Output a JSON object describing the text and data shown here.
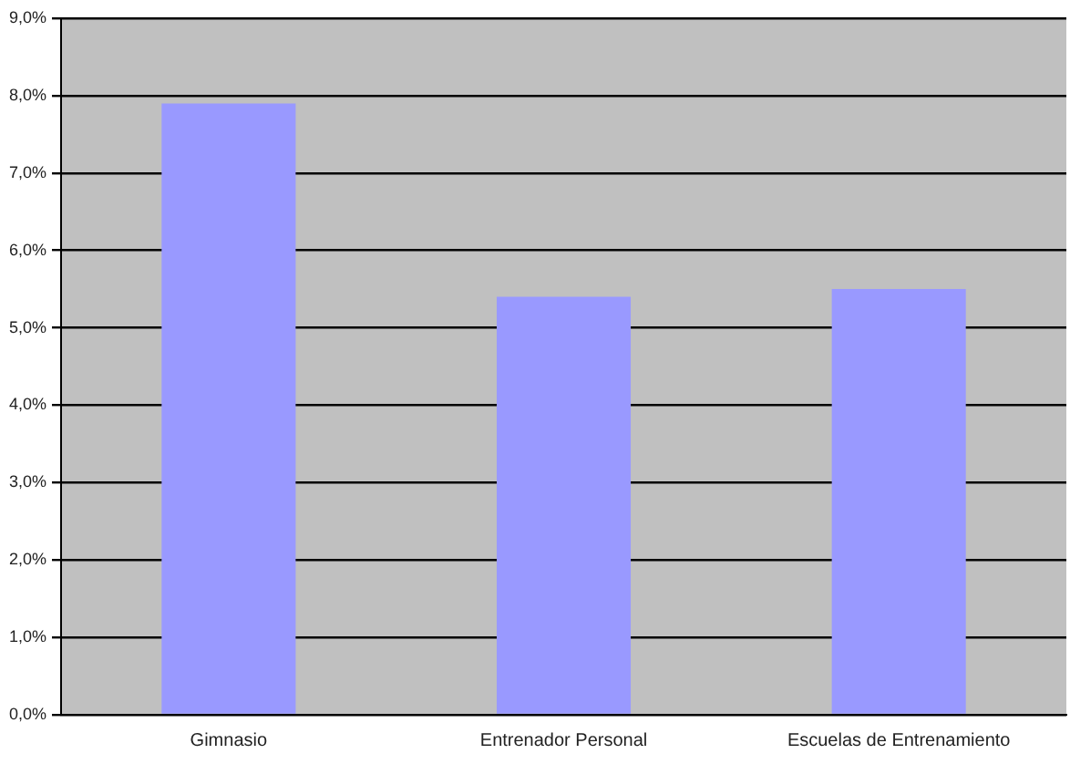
{
  "chart_data": {
    "type": "bar",
    "categories": [
      "Gimnasio",
      "Entrenador Personal",
      "Escuelas de Entrenamiento"
    ],
    "values": [
      7.9,
      5.4,
      5.5
    ],
    "color": "#9999ff",
    "ylim": [
      0,
      9
    ],
    "yticks": [
      {
        "value": 0,
        "label": "0,0%"
      },
      {
        "value": 1,
        "label": "1,0%"
      },
      {
        "value": 2,
        "label": "2,0%"
      },
      {
        "value": 3,
        "label": "3,0%"
      },
      {
        "value": 4,
        "label": "4,0%"
      },
      {
        "value": 5,
        "label": "5,0%"
      },
      {
        "value": 6,
        "label": "6,0%"
      },
      {
        "value": 7,
        "label": "7,0%"
      },
      {
        "value": 8,
        "label": "8,0%"
      },
      {
        "value": 9,
        "label": "9,0%"
      }
    ],
    "grid": "y",
    "legend": false
  }
}
